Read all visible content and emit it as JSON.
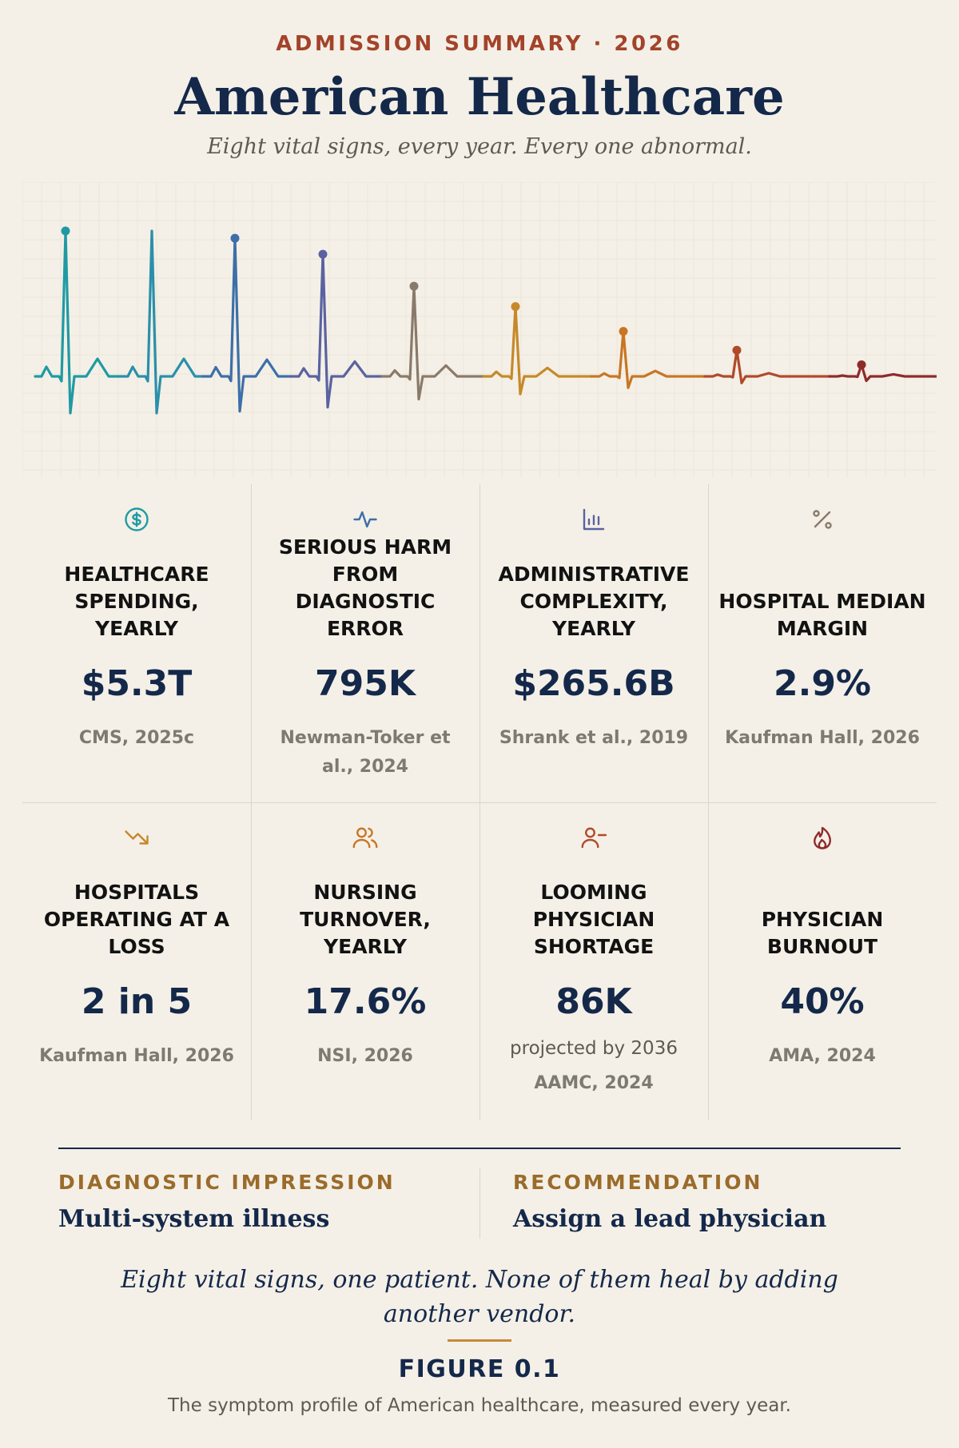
{
  "header": {
    "eyebrow": "ADMISSION SUMMARY · 2026",
    "title": "American Healthcare",
    "subtitle": "Eight vital signs, every year. Every one abnormal."
  },
  "colors": {
    "teal": "#1f9aa3",
    "blue": "#3d6fa8",
    "indigo": "#5a62a0",
    "taupe": "#8a7a6a",
    "gold": "#c6892a",
    "orange": "#c87624",
    "rust": "#b04a2a",
    "crimson": "#8e2b2b",
    "navy": "#14284a",
    "brown": "#9b6b2a",
    "red": "#a3432a"
  },
  "ekg_beats": [
    {
      "color": "#1f9aa3",
      "amplitude": 1.0
    },
    {
      "color": "#2b8fab",
      "amplitude": 1.0
    },
    {
      "color": "#3d6fa8",
      "amplitude": 0.95
    },
    {
      "color": "#5a62a0",
      "amplitude": 0.84
    },
    {
      "color": "#8a7a6a",
      "amplitude": 0.62
    },
    {
      "color": "#c6892a",
      "amplitude": 0.48
    },
    {
      "color": "#c87624",
      "amplitude": 0.31
    },
    {
      "color": "#b04a2a",
      "amplitude": 0.18
    },
    {
      "color": "#8e2b2b",
      "amplitude": 0.08
    }
  ],
  "metrics": [
    {
      "icon": "dollar-circle-icon",
      "color": "#1f9aa3",
      "label": "Healthcare spending, yearly",
      "value": "$5.3T",
      "note": "",
      "source": "CMS, 2025c"
    },
    {
      "icon": "pulse-icon",
      "color": "#3d6fa8",
      "label": "Serious harm from diagnostic error",
      "value": "795K",
      "note": "",
      "source": "Newman-Toker et al., 2024"
    },
    {
      "icon": "bar-chart-icon",
      "color": "#5a62a0",
      "label": "Administrative complexity, yearly",
      "value": "$265.6B",
      "note": "",
      "source": "Shrank et al., 2019"
    },
    {
      "icon": "percent-icon",
      "color": "#8a7a6a",
      "label": "Hospital median margin",
      "value": "2.9%",
      "note": "",
      "source": "Kaufman Hall, 2026"
    },
    {
      "icon": "trend-down-icon",
      "color": "#c6892a",
      "label": "Hospitals operating at a loss",
      "value": "2 in 5",
      "note": "",
      "source": "Kaufman Hall, 2026"
    },
    {
      "icon": "users-icon",
      "color": "#c87624",
      "label": "Nursing turnover, yearly",
      "value": "17.6%",
      "note": "",
      "source": "NSI, 2026"
    },
    {
      "icon": "user-minus-icon",
      "color": "#b04a2a",
      "label": "Looming physician shortage",
      "value": "86K",
      "note": "projected by 2036",
      "source": "AAMC, 2024"
    },
    {
      "icon": "flame-icon",
      "color": "#8e2b2b",
      "label": "Physician burnout",
      "value": "40%",
      "note": "",
      "source": "AMA, 2024"
    }
  ],
  "impression": {
    "diagnostic_head": "DIAGNOSTIC IMPRESSION",
    "diagnostic_body": "Multi-system illness",
    "recommendation_head": "RECOMMENDATION",
    "recommendation_body": "Assign a lead physician"
  },
  "footer": {
    "quote": "Eight vital signs, one patient. None of them heal by adding another vendor.",
    "figure_label": "FIGURE 0.1",
    "caption": "The symptom profile of American healthcare, measured every year."
  }
}
